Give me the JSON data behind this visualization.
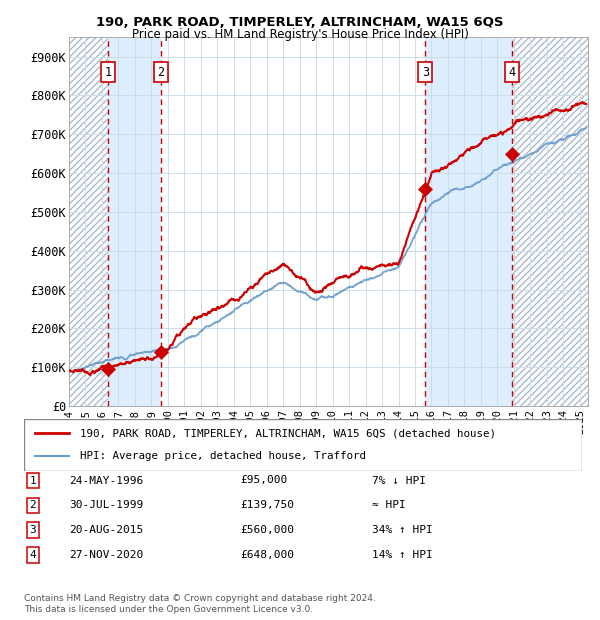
{
  "title_line1": "190, PARK ROAD, TIMPERLEY, ALTRINCHAM, WA15 6QS",
  "title_line2": "Price paid vs. HM Land Registry's House Price Index (HPI)",
  "xlim_start": 1994.0,
  "xlim_end": 2025.5,
  "ylim_min": 0,
  "ylim_max": 950000,
  "yticks": [
    0,
    100000,
    200000,
    300000,
    400000,
    500000,
    600000,
    700000,
    800000,
    900000
  ],
  "ytick_labels": [
    "£0",
    "£100K",
    "£200K",
    "£300K",
    "£400K",
    "£500K",
    "£600K",
    "£700K",
    "£800K",
    "£900K"
  ],
  "sale_year_nums": [
    1996.38,
    1999.58,
    2015.63,
    2020.91
  ],
  "sale_prices": [
    95000,
    139750,
    560000,
    648000
  ],
  "sale_labels": [
    "1",
    "2",
    "3",
    "4"
  ],
  "sale_info": [
    {
      "label": "1",
      "date": "24-MAY-1996",
      "price": "£95,000",
      "rel": "7% ↓ HPI"
    },
    {
      "label": "2",
      "date": "30-JUL-1999",
      "price": "£139,750",
      "rel": "≈ HPI"
    },
    {
      "label": "3",
      "date": "20-AUG-2015",
      "price": "£560,000",
      "rel": "34% ↑ HPI"
    },
    {
      "label": "4",
      "date": "27-NOV-2020",
      "price": "£648,000",
      "rel": "14% ↑ HPI"
    }
  ],
  "red_color": "#cc0000",
  "blue_color": "#6699cc",
  "shade_color": "#ddeeff",
  "hatch_color": "#aabbcc",
  "grid_color": "#ccdde8",
  "vline_color": "#cc0000",
  "legend_line1": "190, PARK ROAD, TIMPERLEY, ALTRINCHAM, WA15 6QS (detached house)",
  "legend_line2": "HPI: Average price, detached house, Trafford",
  "footnote": "Contains HM Land Registry data © Crown copyright and database right 2024.\nThis data is licensed under the Open Government Licence v3.0."
}
